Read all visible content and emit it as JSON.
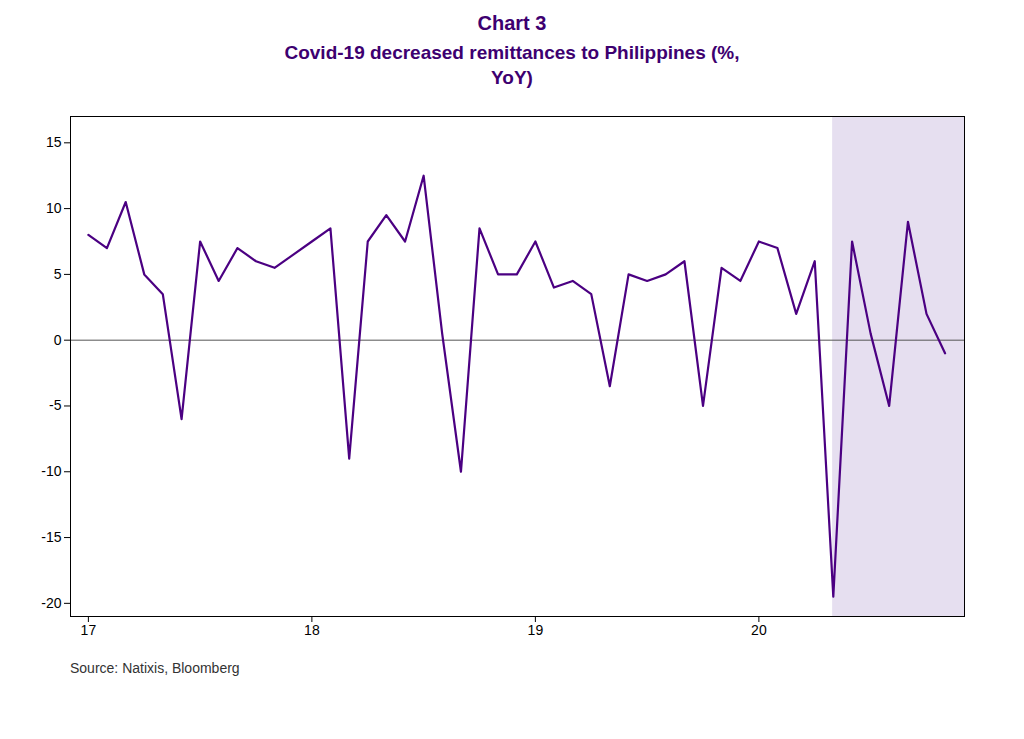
{
  "chart_data": {
    "type": "line",
    "title": "Chart 3",
    "subtitle": "Covid-19 decreased remittances to Philippines (%,\nYoY)",
    "source": "Source: Natixis, Bloomberg",
    "x": [
      17.0,
      17.083,
      17.167,
      17.25,
      17.333,
      17.417,
      17.5,
      17.583,
      17.667,
      17.75,
      17.833,
      17.917,
      18.0,
      18.083,
      18.167,
      18.25,
      18.333,
      18.417,
      18.5,
      18.583,
      18.667,
      18.75,
      18.833,
      18.917,
      19.0,
      19.083,
      19.167,
      19.25,
      19.333,
      19.417,
      19.5,
      19.583,
      19.667,
      19.75,
      19.833,
      19.917,
      20.0,
      20.083,
      20.167,
      20.25,
      20.333,
      20.417,
      20.5,
      20.583,
      20.667,
      20.75,
      20.833
    ],
    "values": [
      8.0,
      7.0,
      10.5,
      5.0,
      3.5,
      -6.0,
      7.5,
      4.5,
      7.0,
      6.0,
      5.5,
      6.5,
      7.5,
      8.5,
      -9.0,
      7.5,
      9.5,
      7.5,
      12.5,
      0.5,
      -10.0,
      8.5,
      5.0,
      5.0,
      7.5,
      4.0,
      4.5,
      3.5,
      -3.5,
      5.0,
      4.5,
      5.0,
      6.0,
      -5.0,
      5.5,
      4.5,
      7.5,
      7.0,
      2.0,
      6.0,
      -19.5,
      7.5,
      0.5,
      -5.0,
      9.0,
      2.0,
      -1.0
    ],
    "color": "#4B0082",
    "shaded_region": {
      "start": 20.33,
      "end": 20.92,
      "color": "#e6dff0"
    },
    "xlim": [
      16.92,
      20.92
    ],
    "xticks": [
      17,
      18,
      19,
      20
    ],
    "ylim": [
      -21,
      17
    ],
    "yticks": [
      -20,
      -15,
      -10,
      -5,
      0,
      5,
      10,
      15
    ],
    "grid": false
  }
}
